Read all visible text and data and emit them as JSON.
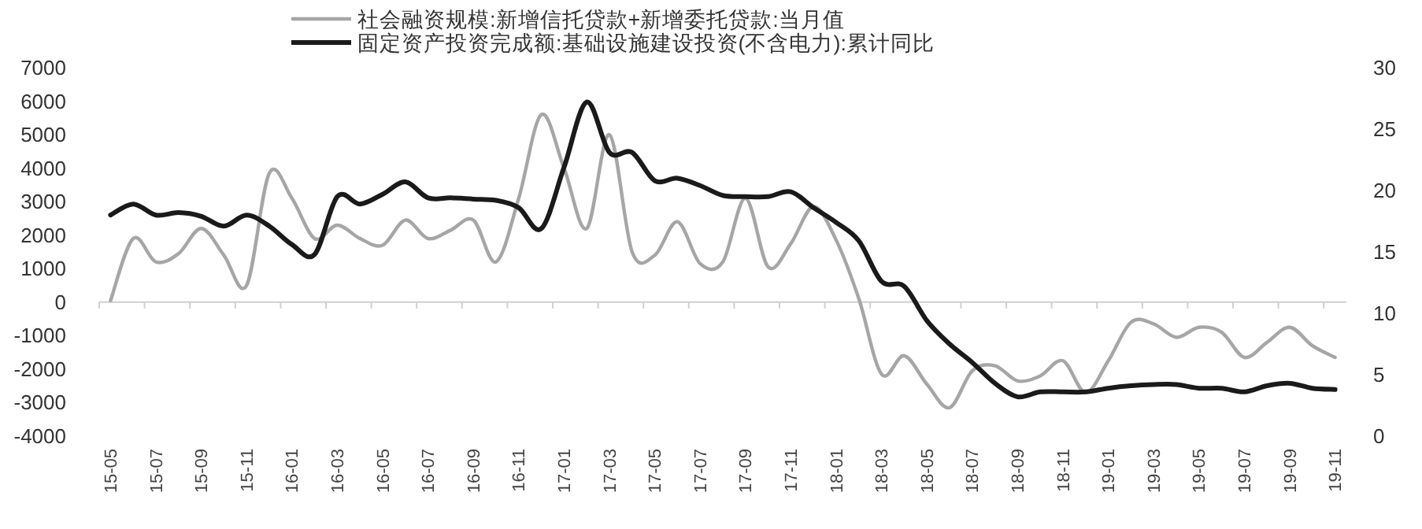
{
  "chart_data": {
    "type": "line",
    "categories": [
      "15-05",
      null,
      "15-07",
      null,
      "15-09",
      null,
      "15-11",
      null,
      "16-01",
      null,
      "16-03",
      null,
      "16-05",
      null,
      "16-07",
      null,
      "16-09",
      null,
      "16-11",
      null,
      "17-01",
      null,
      "17-03",
      null,
      "17-05",
      null,
      "17-07",
      null,
      "17-09",
      null,
      "17-11",
      null,
      "18-01",
      null,
      "18-03",
      null,
      "18-05",
      null,
      "18-07",
      null,
      "18-09",
      null,
      "18-11",
      null,
      "19-01",
      null,
      "19-03",
      null,
      "19-05",
      null,
      "19-07",
      null,
      "19-09",
      null,
      "19-11"
    ],
    "series": [
      {
        "name": "社会融资规模:新增信托贷款+新增委托贷款:当月值",
        "color": "#a6a6a6",
        "values": [
          50,
          1900,
          1200,
          1450,
          2200,
          1400,
          500,
          3850,
          3100,
          1900,
          2300,
          1900,
          1700,
          2450,
          1900,
          2150,
          2450,
          1200,
          3100,
          5600,
          4000,
          2200,
          5000,
          1500,
          1400,
          2400,
          1150,
          1200,
          3100,
          1050,
          1750,
          2850,
          1850,
          100,
          -2150,
          -1600,
          -2450,
          -3150,
          -2050,
          -1900,
          -2350,
          -2200,
          -1750,
          -2700,
          -1750,
          -600,
          -650,
          -1050,
          -750,
          -900,
          -1650,
          -1200,
          -750,
          -1300,
          -1650
        ]
      },
      {
        "name": "固定资产投资完成额:基础设施建设投资(不含电力):累计同比",
        "color": "#1a1a1a",
        "axis": "y2",
        "values": [
          18.0,
          18.9,
          18.0,
          18.2,
          17.9,
          17.1,
          18.0,
          17.1,
          15.6,
          14.8,
          19.5,
          18.9,
          19.7,
          20.7,
          19.4,
          19.4,
          19.3,
          19.2,
          18.6,
          16.9,
          21.9,
          27.2,
          23.1,
          23.1,
          20.8,
          21.0,
          20.4,
          19.6,
          19.5,
          19.5,
          19.9,
          18.6,
          17.4,
          15.9,
          12.6,
          12.2,
          9.4,
          7.5,
          6.0,
          4.3,
          3.2,
          3.6,
          3.6,
          3.6,
          3.9,
          4.1,
          4.2,
          4.2,
          3.9,
          3.9,
          3.6,
          4.1,
          4.3,
          3.9,
          3.8
        ]
      }
    ],
    "ylim": [
      -4000,
      7000
    ],
    "yticks": [
      -4000,
      -3000,
      -2000,
      -1000,
      0,
      1000,
      2000,
      3000,
      4000,
      5000,
      6000,
      7000
    ],
    "y2lim": [
      0,
      30
    ],
    "y2ticks": [
      0,
      5,
      10,
      15,
      20,
      25,
      30
    ],
    "legend": "top"
  }
}
